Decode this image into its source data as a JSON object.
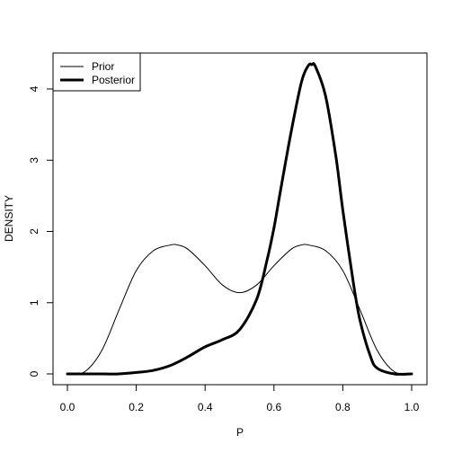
{
  "chart_data": {
    "type": "line",
    "title": "",
    "xlabel": "P",
    "ylabel": "DENSITY",
    "xlim": [
      0,
      1
    ],
    "ylim": [
      0,
      4.35
    ],
    "xticks": [
      0.0,
      0.2,
      0.4,
      0.6,
      0.8,
      1.0
    ],
    "xtick_labels": [
      "0.0",
      "0.2",
      "0.4",
      "0.6",
      "0.8",
      "1.0"
    ],
    "yticks": [
      0,
      1,
      2,
      3,
      4
    ],
    "ytick_labels": [
      "0",
      "1",
      "2",
      "3",
      "4"
    ],
    "grid": false,
    "legend": {
      "position": "top-left",
      "entries": [
        "Prior",
        "Posterior"
      ]
    },
    "series": [
      {
        "name": "Prior",
        "line_width": "thin",
        "color": "#000000",
        "x": [
          0.0,
          0.05,
          0.1,
          0.15,
          0.2,
          0.25,
          0.3,
          0.32,
          0.35,
          0.4,
          0.45,
          0.5,
          0.55,
          0.6,
          0.65,
          0.68,
          0.7,
          0.75,
          0.8,
          0.85,
          0.9,
          0.95,
          1.0
        ],
        "y": [
          0.0,
          0.03,
          0.33,
          0.9,
          1.45,
          1.73,
          1.81,
          1.81,
          1.75,
          1.52,
          1.25,
          1.14,
          1.25,
          1.52,
          1.75,
          1.81,
          1.81,
          1.73,
          1.45,
          0.9,
          0.33,
          0.03,
          0.0
        ]
      },
      {
        "name": "Posterior",
        "line_width": "thick",
        "color": "#000000",
        "x": [
          0.0,
          0.1,
          0.15,
          0.2,
          0.25,
          0.3,
          0.35,
          0.4,
          0.45,
          0.5,
          0.55,
          0.58,
          0.6,
          0.62,
          0.65,
          0.68,
          0.7,
          0.71,
          0.72,
          0.75,
          0.78,
          0.8,
          0.83,
          0.85,
          0.88,
          0.9,
          0.95,
          1.0
        ],
        "y": [
          0.0,
          0.0,
          0.0,
          0.02,
          0.05,
          0.12,
          0.24,
          0.38,
          0.48,
          0.62,
          1.05,
          1.6,
          2.05,
          2.6,
          3.4,
          4.1,
          4.33,
          4.34,
          4.32,
          3.9,
          3.05,
          2.3,
          1.3,
          0.75,
          0.25,
          0.08,
          0.0,
          0.0
        ]
      }
    ]
  }
}
